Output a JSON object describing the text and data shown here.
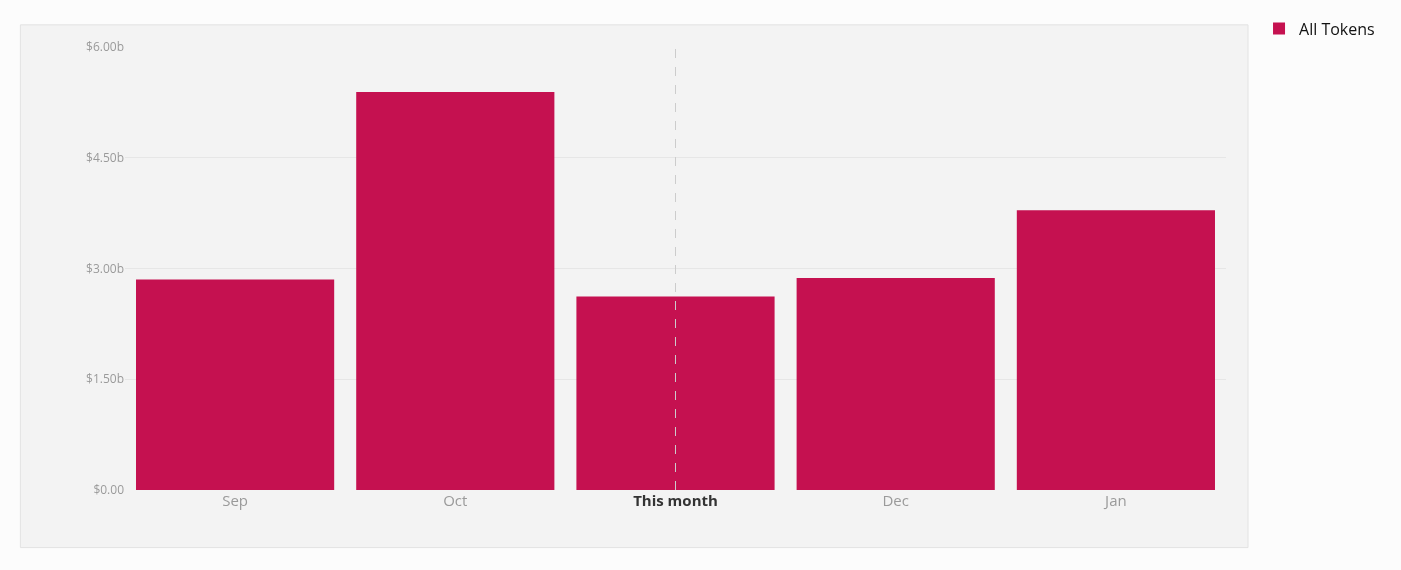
{
  "chart_data": {
    "type": "bar",
    "categories": [
      "Sep",
      "Oct",
      "This month",
      "Dec",
      "Jan"
    ],
    "series": [
      {
        "name": "All Tokens",
        "color": "#c51150",
        "values": [
          2.85,
          5.39,
          2.62,
          2.87,
          3.79
        ]
      }
    ],
    "ylim": [
      0,
      6
    ],
    "yticks": [
      {
        "value": 0,
        "label": "$0.00"
      },
      {
        "value": 1.5,
        "label": "$1.50b"
      },
      {
        "value": 3,
        "label": "$3.00b"
      },
      {
        "value": 4.5,
        "label": "$4.50b"
      },
      {
        "value": 6,
        "label": "$6.00b"
      }
    ],
    "grid": "y",
    "legend": "top right",
    "ref_lines": [
      {
        "axis": "x",
        "value": "This month",
        "color": "#cccccc",
        "line_style": "dashed"
      }
    ]
  }
}
